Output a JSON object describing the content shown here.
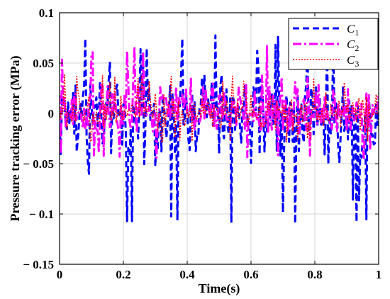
{
  "chart_data": {
    "type": "line",
    "xlabel": "Time(s)",
    "ylabel": "Pressure tracking error (MPa)",
    "xlim": [
      0,
      1
    ],
    "ylim": [
      -0.15,
      0.1
    ],
    "xticks": [
      0,
      0.2,
      0.4,
      0.6,
      0.8,
      1
    ],
    "xtick_labels": [
      "0",
      "0.2",
      "0.4",
      "0.6",
      "0.8",
      "1"
    ],
    "yticks": [
      -0.15,
      -0.1,
      -0.05,
      0,
      0.05,
      0.1
    ],
    "ytick_labels": [
      "− 0.15",
      "− 0.1",
      "− 0.05",
      "0",
      "0.05",
      "0.1"
    ],
    "grid": true,
    "legend_position": "top-right",
    "series": [
      {
        "name": "C",
        "subscript": "1",
        "color": "#0000ff",
        "style": "dashed",
        "approx_range": [
          -0.11,
          0.08
        ],
        "samples": 260
      },
      {
        "name": "C",
        "subscript": "2",
        "color": "#ff00ff",
        "style": "dashdot",
        "approx_range": [
          -0.045,
          0.07
        ],
        "samples": 260
      },
      {
        "name": "C",
        "subscript": "3",
        "color": "#ff0000",
        "style": "dotted",
        "approx_range": [
          -0.03,
          0.04
        ],
        "samples": 260
      }
    ]
  }
}
